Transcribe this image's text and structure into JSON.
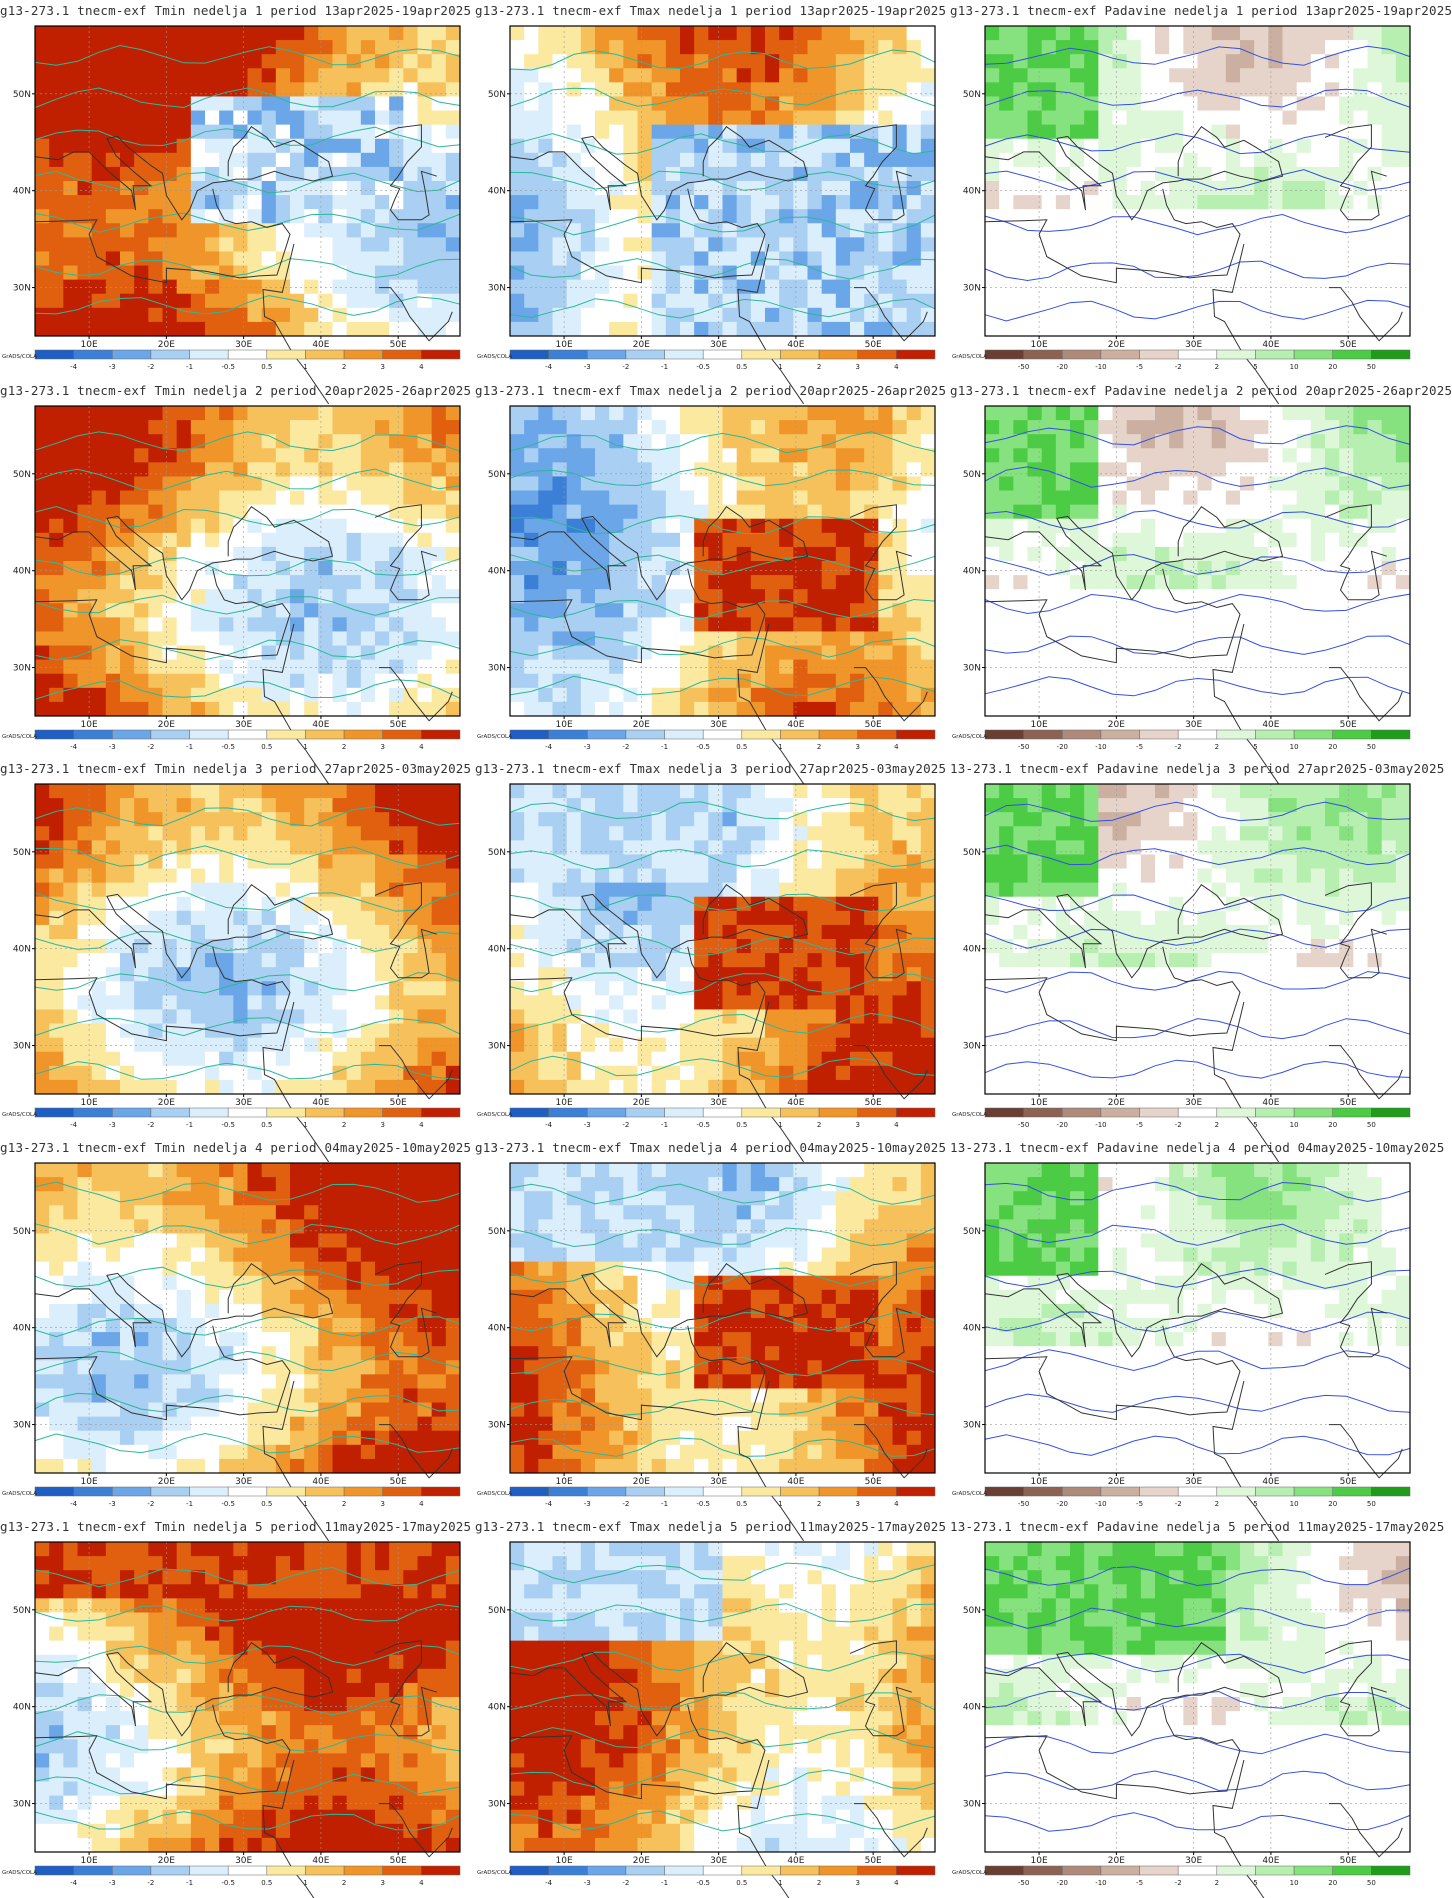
{
  "rows": [
    {
      "week": "1",
      "panels": [
        {
          "kind": "tmin",
          "title": "g13-273.1 tnecm-exf Tmin nedelja 1 period 13apr2025-19apr2025"
        },
        {
          "kind": "tmax",
          "title": "g13-273.1 tnecm-exf Tmax nedelja 1 period 13apr2025-19apr2025"
        },
        {
          "kind": "prec",
          "title": "g13-273.1 tnecm-exf Padavine nedelja 1 period 13apr2025-19apr2025"
        }
      ]
    },
    {
      "week": "2",
      "panels": [
        {
          "kind": "tmin",
          "title": "g13-273.1 tnecm-exf Tmin nedelja 2 period 20apr2025-26apr2025"
        },
        {
          "kind": "tmax",
          "title": "g13-273.1 tnecm-exf Tmax nedelja 2 period 20apr2025-26apr2025"
        },
        {
          "kind": "prec",
          "title": "g13-273.1 tnecm-exf Padavine nedelja 2 period 20apr2025-26apr2025"
        }
      ]
    },
    {
      "week": "3",
      "panels": [
        {
          "kind": "tmin",
          "title": "g13-273.1 tnecm-exf Tmin nedelja 3 period 27apr2025-03may2025"
        },
        {
          "kind": "tmax",
          "title": "g13-273.1 tnecm-exf Tmax nedelja 3 period 27apr2025-03may2025"
        },
        {
          "kind": "prec",
          "title": "13-273.1 tnecm-exf Padavine nedelja 3 period 27apr2025-03may2025"
        }
      ]
    },
    {
      "week": "4",
      "panels": [
        {
          "kind": "tmin",
          "title": "g13-273.1 tnecm-exf Tmin nedelja 4 period 04may2025-10may2025"
        },
        {
          "kind": "tmax",
          "title": "g13-273.1 tnecm-exf Tmax nedelja 4 period 04may2025-10may2025"
        },
        {
          "kind": "prec",
          "title": "13-273.1 tnecm-exf Padavine nedelja 4 period 04may2025-10may2025"
        }
      ]
    },
    {
      "week": "5",
      "panels": [
        {
          "kind": "tmin",
          "title": "g13-273.1 tnecm-exf Tmin nedelja 5 period 11may2025-17may2025"
        },
        {
          "kind": "tmax",
          "title": "g13-273.1 tnecm-exf Tmax nedelja 5 period 11may2025-17may2025"
        },
        {
          "kind": "prec",
          "title": "13-273.1 tnecm-exf Padavine nedelja 5 period 11may2025-17may2025"
        }
      ]
    }
  ],
  "axes": {
    "lon_labels": [
      "10E",
      "20E",
      "30E",
      "40E",
      "50E"
    ],
    "lat_labels": [
      "50N",
      "40N",
      "30N"
    ]
  },
  "colorbars": {
    "temp": {
      "labels": [
        "-4",
        "-3",
        "-2",
        "-1",
        "-0.5",
        "0.5",
        "1",
        "2",
        "3",
        "4"
      ],
      "colors": [
        "#1f5fc4",
        "#3b7fd6",
        "#6aa6e8",
        "#a9cff3",
        "#dbeefb",
        "#ffffff",
        "#fbe9a0",
        "#f6c15b",
        "#f0952a",
        "#e06010",
        "#c02000"
      ]
    },
    "prec": {
      "labels": [
        "-50",
        "-20",
        "-10",
        "-5",
        "-2",
        "2",
        "5",
        "10",
        "20",
        "50"
      ],
      "colors": [
        "#6a3f33",
        "#8c6253",
        "#ad8a7a",
        "#cbb0a2",
        "#e6d4ca",
        "#ffffff",
        "#ddf7d8",
        "#b6efb0",
        "#86e27e",
        "#4ccb45",
        "#1f9c1a"
      ]
    }
  },
  "credit": "GrADS/COLA"
}
